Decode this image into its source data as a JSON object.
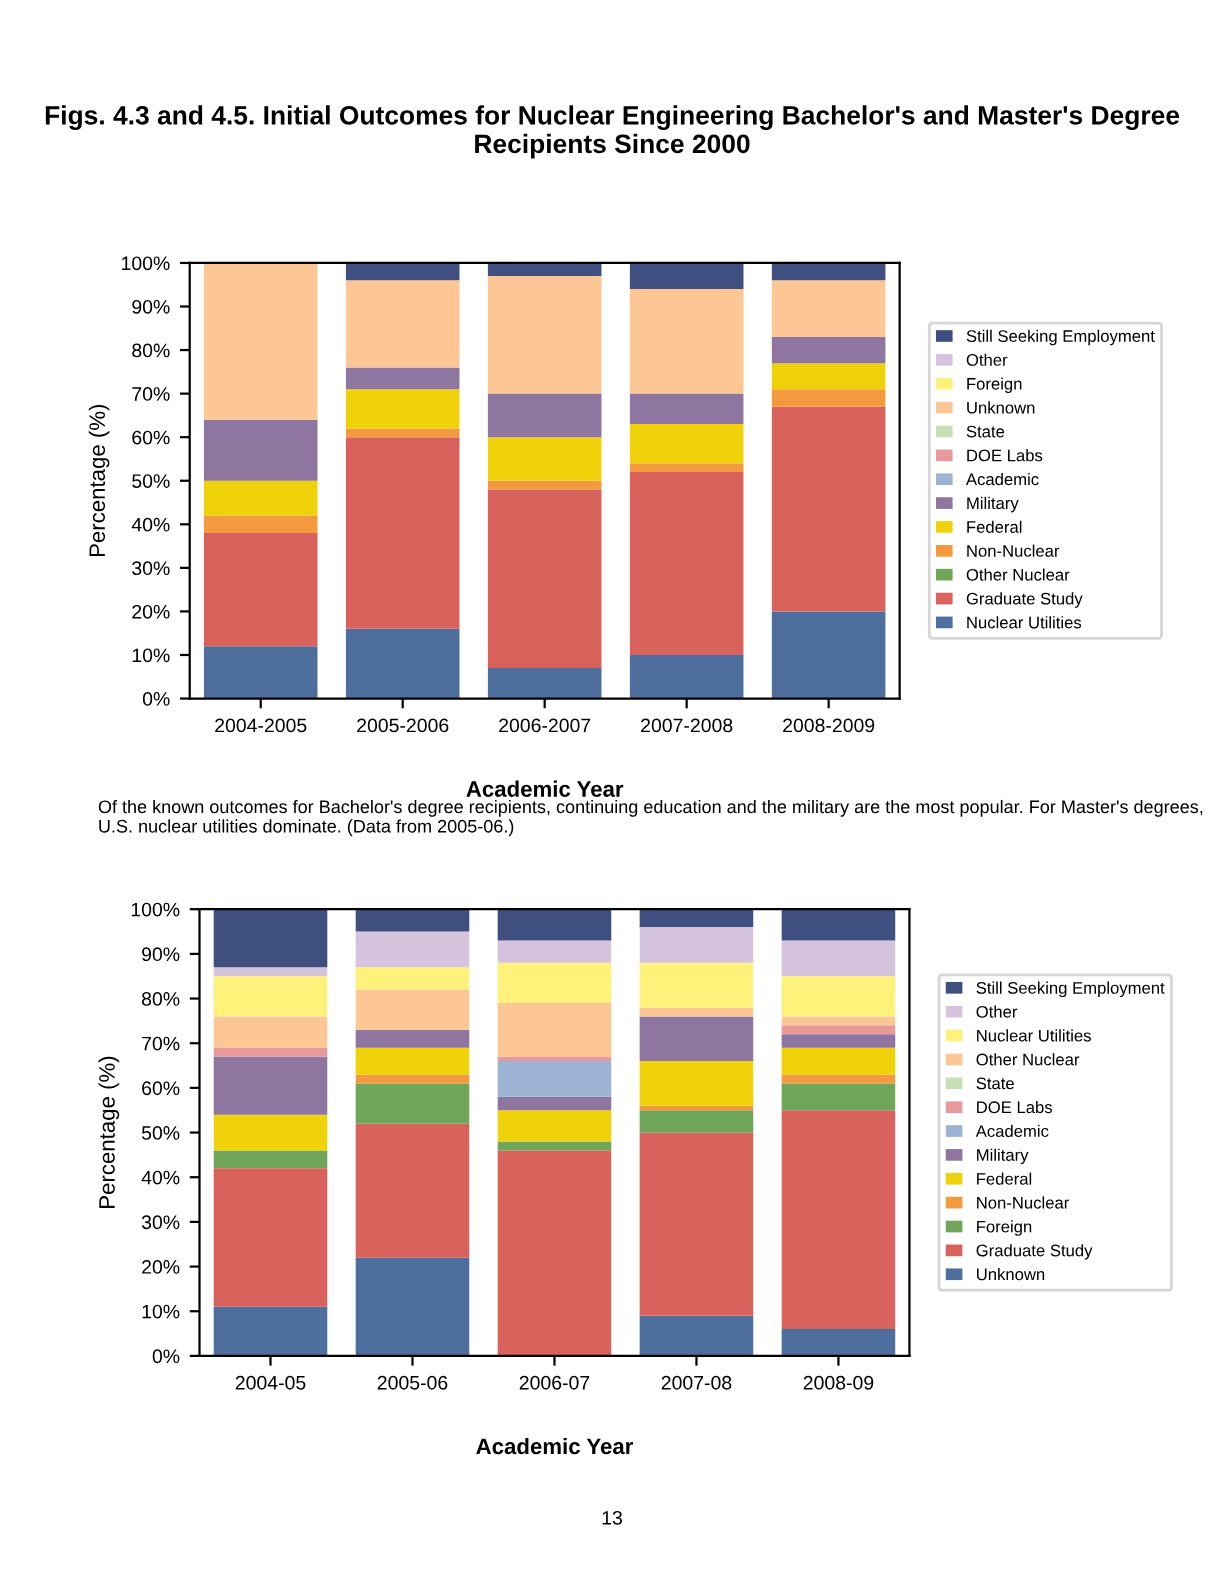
{
  "chart_data": [
    {
      "type": "bar",
      "stacked": true,
      "title": "Figs. 4.3 and 4.5. Initial Outcomes for Nuclear Engineering Bachelor's and Master's Degree Recipients Since 2000",
      "xlabel": "Academic Year",
      "ylabel": "Percentage (%)",
      "legend": "right",
      "grid": false,
      "categories": [
        "2004-2005",
        "2005-2006",
        "2006-2007",
        "2007-2008",
        "2008-2009"
      ],
      "ylim": [
        0,
        100
      ],
      "yticks": [
        {
          "value": 0,
          "label": "0%"
        },
        {
          "value": 10,
          "label": "10%"
        },
        {
          "value": 20,
          "label": "20%"
        },
        {
          "value": 30,
          "label": "30%"
        },
        {
          "value": 40,
          "label": "40%"
        },
        {
          "value": 50,
          "label": "50%"
        },
        {
          "value": 60,
          "label": "60%"
        },
        {
          "value": 70,
          "label": "70%"
        },
        {
          "value": 80,
          "label": "80%"
        },
        {
          "value": 90,
          "label": "90%"
        },
        {
          "value": 100,
          "label": "100%"
        }
      ],
      "series": [
        {
          "name": "Nuclear Utilities",
          "color": "#4e6e9e",
          "values": [
            12,
            16,
            7,
            10,
            20
          ]
        },
        {
          "name": "Graduate Study",
          "color": "#d9625c",
          "values": [
            26,
            44,
            41,
            42,
            47
          ]
        },
        {
          "name": "Other Nuclear",
          "color": "#6fa65a",
          "values": [
            0,
            0,
            0,
            0,
            0
          ]
        },
        {
          "name": "Non-Nuclear",
          "color": "#f29a3d",
          "values": [
            4,
            2,
            2,
            2,
            4
          ]
        },
        {
          "name": "Federal",
          "color": "#f0d20a",
          "values": [
            8,
            9,
            10,
            9,
            6
          ]
        },
        {
          "name": "Military",
          "color": "#8e76a0",
          "values": [
            14,
            5,
            10,
            7,
            6
          ]
        },
        {
          "name": "Academic",
          "color": "#9db3d3",
          "values": [
            0,
            0,
            0,
            0,
            0
          ]
        },
        {
          "name": "DOE Labs",
          "color": "#e89a9a",
          "values": [
            0,
            0,
            0,
            0,
            0
          ]
        },
        {
          "name": "State",
          "color": "#c5e0b4",
          "values": [
            0,
            0,
            0,
            0,
            0
          ]
        },
        {
          "name": "Unknown",
          "color": "#fcc795",
          "values": [
            36,
            20,
            27,
            24,
            13
          ]
        },
        {
          "name": "Foreign",
          "color": "#fff27a",
          "values": [
            0,
            0,
            0,
            0,
            0
          ]
        },
        {
          "name": "Other",
          "color": "#d6c4de",
          "values": [
            0,
            0,
            0,
            0,
            0
          ]
        },
        {
          "name": "Still Seeking Employment",
          "color": "#3f4f80",
          "values": [
            0,
            4,
            3,
            6,
            4
          ]
        }
      ],
      "annotations": [
        "Of the known outcomes for Bachelor's degree recipients, continuing education and the military are the most popular. For Master's degrees, U.S. nuclear utilities dominate. (Data from 2005-06.)"
      ]
    },
    {
      "type": "bar",
      "stacked": true,
      "xlabel": "Academic Year",
      "ylabel": "Percentage (%)",
      "legend": "right",
      "grid": false,
      "categories": [
        "2004-05",
        "2005-06",
        "2006-07",
        "2007-08",
        "2008-09"
      ],
      "ylim": [
        0,
        100
      ],
      "yticks": [
        {
          "value": 0,
          "label": "0%"
        },
        {
          "value": 10,
          "label": "10%"
        },
        {
          "value": 20,
          "label": "20%"
        },
        {
          "value": 30,
          "label": "30%"
        },
        {
          "value": 40,
          "label": "40%"
        },
        {
          "value": 50,
          "label": "50%"
        },
        {
          "value": 60,
          "label": "60%"
        },
        {
          "value": 70,
          "label": "70%"
        },
        {
          "value": 80,
          "label": "80%"
        },
        {
          "value": 90,
          "label": "90%"
        },
        {
          "value": 100,
          "label": "100%"
        }
      ],
      "series": [
        {
          "name": "Unknown",
          "color": "#4e6e9e",
          "values": [
            11,
            22,
            0,
            9,
            6
          ]
        },
        {
          "name": "Graduate Study",
          "color": "#d9625c",
          "values": [
            31,
            30,
            46,
            41,
            49
          ]
        },
        {
          "name": "Foreign",
          "color": "#6fa65a",
          "values": [
            4,
            9,
            2,
            5,
            6
          ]
        },
        {
          "name": "Non-Nuclear",
          "color": "#f29a3d",
          "values": [
            0,
            2,
            0,
            1,
            2
          ]
        },
        {
          "name": "Federal",
          "color": "#f0d20a",
          "values": [
            8,
            6,
            7,
            10,
            6
          ]
        },
        {
          "name": "Military",
          "color": "#8e76a0",
          "values": [
            13,
            4,
            3,
            10,
            3
          ]
        },
        {
          "name": "Academic",
          "color": "#9db3d3",
          "values": [
            0,
            0,
            8,
            0,
            0
          ]
        },
        {
          "name": "DOE Labs",
          "color": "#e89a9a",
          "values": [
            2,
            0,
            1,
            0,
            2
          ]
        },
        {
          "name": "State",
          "color": "#c5e0b4",
          "values": [
            0,
            0,
            0,
            0,
            0
          ]
        },
        {
          "name": "Other Nuclear",
          "color": "#fcc795",
          "values": [
            7,
            9,
            12,
            2,
            2
          ]
        },
        {
          "name": "Nuclear Utilities",
          "color": "#fff27a",
          "values": [
            9,
            5,
            9,
            10,
            9
          ]
        },
        {
          "name": "Other",
          "color": "#d6c4de",
          "values": [
            2,
            8,
            5,
            8,
            8
          ]
        },
        {
          "name": "Still Seeking Employment",
          "color": "#3f4f80",
          "values": [
            13,
            5,
            7,
            4,
            7
          ]
        }
      ],
      "annotations": [
        "13"
      ]
    }
  ]
}
